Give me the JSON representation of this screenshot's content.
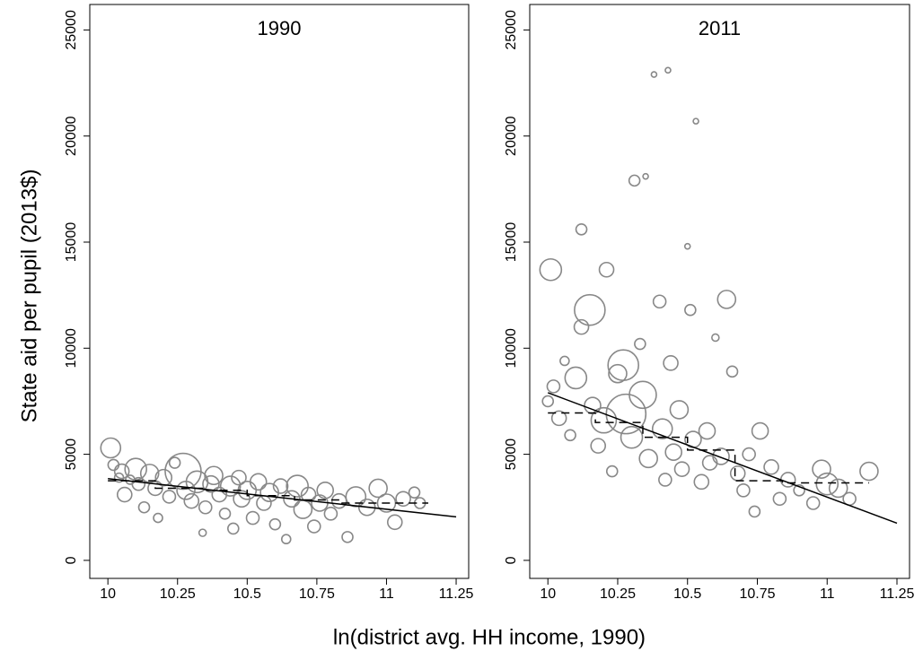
{
  "ylabel": "State aid per pupil (2013$)",
  "xlabel": "ln(district avg. HH income, 1990)",
  "chart_data": [
    {
      "type": "scatter",
      "title": "1990",
      "marker_color": "#888888",
      "line_color": "#000000",
      "xlim": [
        9.935,
        11.295
      ],
      "ylim": [
        -850,
        26200
      ],
      "xticks": [
        10,
        10.25,
        10.5,
        10.75,
        11,
        11.25
      ],
      "yticks": [
        0,
        5000,
        10000,
        15000,
        20000,
        25000
      ],
      "points": {
        "x": [
          10.01,
          10.02,
          10.04,
          10.05,
          10.06,
          10.08,
          10.1,
          10.11,
          10.13,
          10.15,
          10.17,
          10.18,
          10.2,
          10.22,
          10.24,
          10.27,
          10.28,
          10.3,
          10.32,
          10.34,
          10.35,
          10.37,
          10.38,
          10.4,
          10.42,
          10.44,
          10.45,
          10.47,
          10.48,
          10.5,
          10.52,
          10.54,
          10.56,
          10.58,
          10.6,
          10.62,
          10.64,
          10.66,
          10.68,
          10.7,
          10.72,
          10.74,
          10.76,
          10.78,
          10.8,
          10.83,
          10.86,
          10.89,
          10.93,
          10.97,
          11.0,
          11.03,
          11.06,
          11.1,
          11.12
        ],
        "values": [
          5300,
          4500,
          3900,
          4200,
          3100,
          3800,
          4300,
          3600,
          2500,
          4100,
          3400,
          2000,
          3900,
          3000,
          4600,
          4200,
          3300,
          2800,
          3700,
          1300,
          2500,
          3600,
          4000,
          3100,
          2200,
          3500,
          1500,
          3900,
          2900,
          3300,
          2000,
          3700,
          2700,
          3200,
          1700,
          3500,
          1000,
          2900,
          3500,
          2400,
          3100,
          1600,
          2700,
          3300,
          2200,
          2800,
          1100,
          3000,
          2500,
          3400,
          2700,
          1800,
          2900,
          3200,
          2700
        ],
        "sizes": [
          11,
          6,
          5,
          8,
          8,
          5,
          12,
          7,
          6,
          10,
          8,
          5,
          9,
          7,
          6,
          20,
          10,
          8,
          12,
          4,
          7,
          9,
          10,
          8,
          6,
          11,
          6,
          8,
          9,
          10,
          7,
          9,
          8,
          10,
          6,
          8,
          5,
          9,
          12,
          10,
          8,
          7,
          9,
          9,
          7,
          8,
          6,
          11,
          9,
          10,
          10,
          8,
          8,
          6,
          6
        ]
      },
      "fit": {
        "x": [
          10,
          11.25
        ],
        "values": [
          3850,
          2050
        ],
        "style": "solid"
      },
      "binned": {
        "x": [
          10,
          10.17,
          10.17,
          10.34,
          10.34,
          10.5,
          10.5,
          10.67,
          10.67,
          10.84,
          10.84,
          11.15
        ],
        "values": [
          3750,
          3750,
          3400,
          3400,
          3300,
          3300,
          3050,
          3050,
          2850,
          2850,
          2700,
          2700
        ],
        "style": "dashed"
      }
    },
    {
      "type": "scatter",
      "title": "2011",
      "marker_color": "#888888",
      "line_color": "#000000",
      "xlim": [
        9.935,
        11.295
      ],
      "ylim": [
        -850,
        26200
      ],
      "xticks": [
        10,
        10.25,
        10.5,
        10.75,
        11,
        11.25
      ],
      "yticks": [
        0,
        5000,
        10000,
        15000,
        20000,
        25000
      ],
      "points": {
        "x": [
          10.01,
          10.0,
          10.02,
          10.04,
          10.06,
          10.08,
          10.1,
          10.12,
          10.12,
          10.15,
          10.16,
          10.18,
          10.2,
          10.21,
          10.23,
          10.25,
          10.27,
          10.28,
          10.3,
          10.31,
          10.33,
          10.34,
          10.35,
          10.36,
          10.38,
          10.4,
          10.41,
          10.42,
          10.43,
          10.44,
          10.45,
          10.47,
          10.48,
          10.5,
          10.51,
          10.52,
          10.53,
          10.55,
          10.57,
          10.58,
          10.6,
          10.62,
          10.64,
          10.66,
          10.68,
          10.7,
          10.72,
          10.74,
          10.76,
          10.8,
          10.83,
          10.86,
          10.9,
          10.95,
          10.98,
          11.0,
          11.04,
          11.08,
          11.15
        ],
        "values": [
          13700,
          7500,
          8200,
          6700,
          9400,
          5900,
          8600,
          15600,
          11000,
          11800,
          7300,
          5400,
          6600,
          13700,
          4200,
          8800,
          9200,
          6900,
          5800,
          17900,
          10200,
          7800,
          18100,
          4800,
          22900,
          12200,
          6200,
          3800,
          23100,
          9300,
          5100,
          7100,
          4300,
          14800,
          11800,
          5700,
          20700,
          3700,
          6100,
          4600,
          10500,
          4900,
          12300,
          8900,
          4100,
          3300,
          5000,
          2300,
          6100,
          4400,
          2900,
          3800,
          3300,
          2700,
          4300,
          3600,
          3400,
          2900,
          4200
        ],
        "sizes": [
          12,
          6,
          7,
          8,
          5,
          6,
          12,
          6,
          8,
          17,
          9,
          8,
          14,
          8,
          6,
          10,
          17,
          22,
          12,
          6,
          6,
          15,
          3,
          10,
          3,
          7,
          11,
          7,
          3,
          8,
          9,
          10,
          8,
          3,
          6,
          9,
          3,
          8,
          9,
          8,
          4,
          9,
          10,
          6,
          8,
          7,
          7,
          6,
          9,
          8,
          7,
          8,
          6,
          7,
          10,
          12,
          10,
          7,
          10
        ]
      },
      "fit": {
        "x": [
          10,
          11.25
        ],
        "values": [
          7900,
          1750
        ],
        "style": "solid"
      },
      "binned": {
        "x": [
          10,
          10.17,
          10.17,
          10.34,
          10.34,
          10.5,
          10.5,
          10.67,
          10.67,
          10.84,
          10.84,
          11.15
        ],
        "values": [
          6950,
          6950,
          6500,
          6500,
          5800,
          5800,
          5200,
          5200,
          3750,
          3750,
          3650,
          3650
        ],
        "style": "dashed"
      }
    }
  ]
}
